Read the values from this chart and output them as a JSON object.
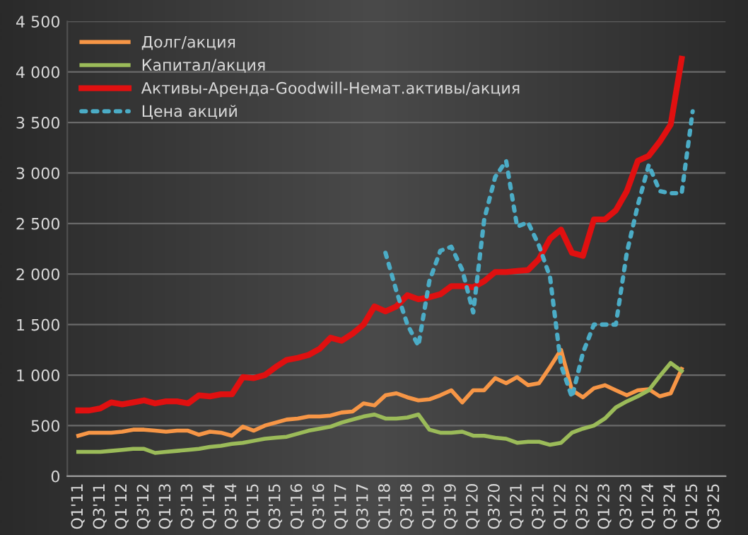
{
  "chart_data": {
    "type": "line",
    "categories": [
      "Q1'11",
      null,
      "Q3'11",
      null,
      "Q1'12",
      null,
      "Q3'12",
      null,
      "Q1'13",
      null,
      "Q3'13",
      null,
      "Q1'14",
      null,
      "Q3'14",
      null,
      "Q1'15",
      null,
      "Q3'15",
      null,
      "Q1'16",
      null,
      "Q3'16",
      null,
      "Q1'17",
      null,
      "Q3'17",
      null,
      "Q1'18",
      null,
      "Q3'18",
      null,
      "Q1'19",
      null,
      "Q3'19",
      null,
      "Q1'20",
      null,
      "Q3'20",
      null,
      "Q1'21",
      null,
      "Q3'21",
      null,
      "Q1'22",
      null,
      "Q3'22",
      null,
      "Q1'23",
      null,
      "Q3'23",
      null,
      "Q1'24",
      null,
      "Q3'24",
      null,
      "Q1'25",
      null,
      "Q3'25"
    ],
    "series": [
      {
        "name": "Долг/акция",
        "color": "#f79646",
        "line_style": "solid",
        "values": [
          400,
          430,
          430,
          430,
          440,
          460,
          460,
          450,
          440,
          450,
          450,
          410,
          440,
          430,
          400,
          490,
          450,
          500,
          530,
          560,
          570,
          590,
          590,
          600,
          630,
          640,
          720,
          700,
          800,
          820,
          780,
          750,
          760,
          800,
          850,
          730,
          850,
          850,
          970,
          920,
          980,
          900,
          920,
          1080,
          1250,
          850,
          780,
          870,
          900,
          850,
          800,
          850,
          860,
          790,
          820,
          1060,
          null,
          null,
          null
        ]
      },
      {
        "name": "Капитал/акция",
        "color": "#9bbb59",
        "line_style": "solid",
        "values": [
          240,
          240,
          240,
          250,
          260,
          270,
          270,
          230,
          240,
          250,
          260,
          270,
          290,
          300,
          320,
          330,
          350,
          370,
          380,
          390,
          420,
          450,
          470,
          490,
          530,
          560,
          590,
          610,
          570,
          570,
          580,
          610,
          460,
          430,
          430,
          440,
          400,
          400,
          380,
          370,
          330,
          340,
          340,
          310,
          330,
          430,
          470,
          500,
          570,
          680,
          740,
          790,
          850,
          990,
          1120,
          1040,
          null,
          null,
          null
        ]
      },
      {
        "name": "Активы-Аренда-Goodwill-Немат.активы/акция",
        "color": "#e01010",
        "line_style": "solid",
        "values": [
          650,
          650,
          670,
          730,
          710,
          730,
          750,
          720,
          740,
          740,
          720,
          800,
          790,
          810,
          810,
          980,
          970,
          1000,
          1080,
          1150,
          1170,
          1200,
          1260,
          1370,
          1340,
          1410,
          1500,
          1680,
          1630,
          1680,
          1790,
          1750,
          1770,
          1800,
          1880,
          1880,
          1870,
          1930,
          2020,
          2020,
          2030,
          2040,
          2150,
          2350,
          2440,
          2210,
          2180,
          2540,
          2540,
          2630,
          2820,
          3120,
          3170,
          3310,
          3480,
          4130,
          null,
          null,
          null
        ]
      },
      {
        "name": "Цена акций",
        "color": "#4bacc6",
        "line_style": "dotted",
        "values": [
          null,
          null,
          null,
          null,
          null,
          null,
          null,
          null,
          null,
          null,
          null,
          null,
          null,
          null,
          null,
          null,
          null,
          null,
          null,
          null,
          null,
          null,
          null,
          null,
          null,
          null,
          null,
          null,
          2210,
          1830,
          1500,
          1290,
          1930,
          2230,
          2270,
          2040,
          1620,
          2540,
          2960,
          3120,
          2470,
          2510,
          2280,
          1970,
          1100,
          780,
          1220,
          1500,
          1500,
          1500,
          2210,
          2680,
          3080,
          2820,
          2800,
          2800,
          3610,
          null,
          null
        ]
      }
    ],
    "ylim": [
      0,
      4500
    ],
    "yticks": [
      0,
      500,
      {
        "value": 1000,
        "label": "1 000"
      },
      {
        "value": 1500,
        "label": "1 500"
      },
      {
        "value": 2000,
        "label": "2 000"
      },
      {
        "value": 2500,
        "label": "2 500"
      },
      {
        "value": 3000,
        "label": "3 000"
      },
      {
        "value": 3500,
        "label": "3 500"
      },
      {
        "value": 4000,
        "label": "4 000"
      },
      {
        "value": 4500,
        "label": "4 500"
      }
    ],
    "grid": "y",
    "legend": "top left",
    "marker": "none"
  }
}
